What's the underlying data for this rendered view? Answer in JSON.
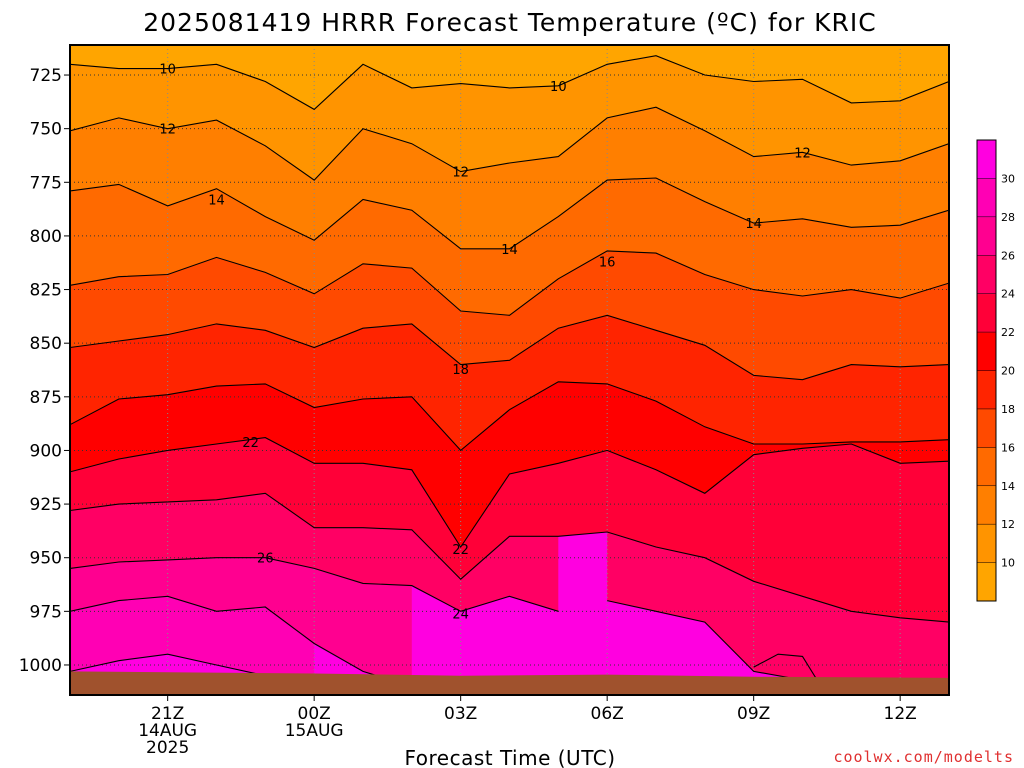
{
  "title": "2025081419 HRRR Forecast Temperature (ºC) for KRIC",
  "credit": "coolwx.com/modelts",
  "chart_data": {
    "type": "heatmap",
    "title": "2025081419 HRRR Forecast Temperature (ºC) for KRIC",
    "xlabel": "Forecast Time (UTC)",
    "ylabel": "",
    "x_unit": "forecast hour (hours after 2025081419)",
    "x_range": [
      19,
      37
    ],
    "y_unit": "pressure (hPa)",
    "y_range": [
      1014,
      711
    ],
    "y_scale": "linear, decreasing upward",
    "grid": true,
    "y_ticks": [
      725,
      750,
      775,
      800,
      825,
      850,
      875,
      900,
      925,
      950,
      975,
      1000
    ],
    "x_ticks": [
      {
        "x": 21,
        "lines": [
          "21Z",
          "14AUG",
          "2025"
        ]
      },
      {
        "x": 24,
        "lines": [
          "00Z",
          "15AUG"
        ]
      },
      {
        "x": 27,
        "lines": [
          "03Z"
        ]
      },
      {
        "x": 30,
        "lines": [
          "06Z"
        ]
      },
      {
        "x": 33,
        "lines": [
          "09Z"
        ]
      },
      {
        "x": 36,
        "lines": [
          "12Z"
        ]
      }
    ],
    "colorbar": {
      "levels": [
        10,
        12,
        14,
        16,
        18,
        20,
        22,
        24,
        26,
        28,
        30
      ],
      "colors": [
        "#ffa500",
        "#ff9400",
        "#ff7f00",
        "#ff6a00",
        "#ff4a00",
        "#ff2400",
        "#ff0000",
        "#ff0038",
        "#ff0064",
        "#ff0090",
        "#ff00b4",
        "#ff00e0"
      ]
    },
    "contours": [
      {
        "value": 10,
        "points": [
          [
            19,
            720
          ],
          [
            20,
            722
          ],
          [
            21,
            722
          ],
          [
            22,
            720
          ],
          [
            23,
            728
          ],
          [
            24,
            741
          ],
          [
            25,
            720
          ],
          [
            26,
            731
          ],
          [
            27,
            729
          ],
          [
            28,
            731
          ],
          [
            29,
            730
          ],
          [
            30,
            720
          ],
          [
            31,
            716
          ],
          [
            32,
            725
          ],
          [
            33,
            728
          ],
          [
            34,
            727
          ],
          [
            35,
            738
          ],
          [
            36,
            737
          ],
          [
            37,
            728
          ]
        ]
      },
      {
        "value": 12,
        "points": [
          [
            19,
            751
          ],
          [
            20,
            745
          ],
          [
            21,
            750
          ],
          [
            22,
            746
          ],
          [
            23,
            758
          ],
          [
            24,
            774
          ],
          [
            25,
            750
          ],
          [
            26,
            757
          ],
          [
            27,
            770
          ],
          [
            28,
            766
          ],
          [
            29,
            763
          ],
          [
            30,
            745
          ],
          [
            31,
            740
          ],
          [
            32,
            751
          ],
          [
            33,
            763
          ],
          [
            34,
            761
          ],
          [
            35,
            767
          ],
          [
            36,
            765
          ],
          [
            37,
            757
          ]
        ]
      },
      {
        "value": 14,
        "points": [
          [
            19,
            779
          ],
          [
            20,
            776
          ],
          [
            21,
            786
          ],
          [
            22,
            778
          ],
          [
            23,
            791
          ],
          [
            24,
            802
          ],
          [
            25,
            783
          ],
          [
            26,
            788
          ],
          [
            27,
            806
          ],
          [
            28,
            806
          ],
          [
            29,
            791
          ],
          [
            30,
            774
          ],
          [
            31,
            773
          ],
          [
            32,
            784
          ],
          [
            33,
            794
          ],
          [
            34,
            792
          ],
          [
            35,
            796
          ],
          [
            36,
            795
          ],
          [
            37,
            788
          ]
        ]
      },
      {
        "value": 16,
        "points": [
          [
            19,
            823
          ],
          [
            20,
            819
          ],
          [
            21,
            818
          ],
          [
            22,
            810
          ],
          [
            23,
            817
          ],
          [
            24,
            827
          ],
          [
            25,
            813
          ],
          [
            26,
            815
          ],
          [
            27,
            835
          ],
          [
            28,
            837
          ],
          [
            29,
            820
          ],
          [
            30,
            807
          ],
          [
            31,
            808
          ],
          [
            32,
            818
          ],
          [
            33,
            825
          ],
          [
            34,
            828
          ],
          [
            35,
            825
          ],
          [
            36,
            829
          ],
          [
            37,
            822
          ]
        ]
      },
      {
        "value": 18,
        "points": [
          [
            19,
            852
          ],
          [
            20,
            849
          ],
          [
            21,
            846
          ],
          [
            22,
            841
          ],
          [
            23,
            844
          ],
          [
            24,
            852
          ],
          [
            25,
            843
          ],
          [
            26,
            841
          ],
          [
            27,
            860
          ],
          [
            28,
            858
          ],
          [
            29,
            843
          ],
          [
            30,
            837
          ],
          [
            31,
            844
          ],
          [
            32,
            851
          ],
          [
            33,
            865
          ],
          [
            34,
            867
          ],
          [
            35,
            860
          ],
          [
            36,
            861
          ],
          [
            37,
            860
          ]
        ]
      },
      {
        "value": 20,
        "points": [
          [
            19,
            888
          ],
          [
            20,
            876
          ],
          [
            21,
            874
          ],
          [
            22,
            870
          ],
          [
            23,
            869
          ],
          [
            24,
            880
          ],
          [
            25,
            876
          ],
          [
            26,
            875
          ],
          [
            27,
            900
          ],
          [
            28,
            881
          ],
          [
            29,
            868
          ],
          [
            30,
            869
          ],
          [
            31,
            877
          ],
          [
            32,
            889
          ],
          [
            33,
            897
          ],
          [
            34,
            897
          ],
          [
            35,
            896
          ],
          [
            36,
            896
          ],
          [
            37,
            895
          ]
        ]
      },
      {
        "value": 22,
        "points": [
          [
            19,
            910
          ],
          [
            20,
            904
          ],
          [
            21,
            900
          ],
          [
            22,
            897
          ],
          [
            23,
            894
          ],
          [
            24,
            906
          ],
          [
            25,
            906
          ],
          [
            26,
            909
          ],
          [
            27,
            945
          ],
          [
            28,
            911
          ],
          [
            29,
            906
          ],
          [
            30,
            900
          ],
          [
            31,
            909
          ],
          [
            32,
            920
          ],
          [
            33,
            902
          ],
          [
            34,
            899
          ],
          [
            35,
            897
          ],
          [
            36,
            906
          ],
          [
            37,
            905
          ]
        ]
      },
      {
        "value": 24,
        "points": [
          [
            19,
            928
          ],
          [
            20,
            925
          ],
          [
            21,
            924
          ],
          [
            22,
            923
          ],
          [
            23,
            920
          ],
          [
            24,
            936
          ],
          [
            25,
            936
          ],
          [
            26,
            937
          ],
          [
            27,
            960
          ],
          [
            28,
            940
          ],
          [
            29,
            940
          ],
          [
            30,
            938
          ],
          [
            31,
            945
          ],
          [
            32,
            950
          ],
          [
            33,
            961
          ],
          [
            34,
            968
          ],
          [
            35,
            975
          ],
          [
            36,
            978
          ],
          [
            37,
            980
          ]
        ]
      },
      {
        "value": 26,
        "points": [
          [
            19,
            955
          ],
          [
            20,
            952
          ],
          [
            21,
            951
          ],
          [
            22,
            950
          ],
          [
            23,
            950
          ],
          [
            24,
            955
          ],
          [
            25,
            962
          ],
          [
            26,
            963
          ],
          [
            27,
            975
          ],
          [
            28,
            968
          ],
          [
            29,
            975
          ]
        ]
      },
      {
        "value": 26,
        "points": [
          [
            30,
            970
          ],
          [
            31,
            975
          ],
          [
            32,
            980
          ],
          [
            33,
            1003
          ],
          [
            34,
            1007
          ],
          [
            35,
            1013
          ],
          [
            36,
            1013
          ],
          [
            37,
            1013
          ]
        ]
      },
      {
        "value": 28,
        "points": [
          [
            19,
            975
          ],
          [
            20,
            970
          ],
          [
            21,
            968
          ],
          [
            22,
            975
          ],
          [
            23,
            973
          ],
          [
            24,
            990
          ],
          [
            25,
            1003
          ],
          [
            26,
            1010
          ]
        ]
      },
      {
        "value": 28,
        "points": [
          [
            33,
            1001
          ],
          [
            33.5,
            995
          ],
          [
            34,
            996
          ],
          [
            34.3,
            1007
          ]
        ]
      },
      {
        "value": 30,
        "points": [
          [
            19,
            1003
          ],
          [
            20,
            998
          ],
          [
            21,
            995
          ],
          [
            22,
            1000
          ],
          [
            23,
            1005
          ],
          [
            24,
            1013
          ]
        ]
      }
    ],
    "contour_labels": [
      {
        "value": 10,
        "x": 21,
        "y": 722
      },
      {
        "value": 10,
        "x": 29,
        "y": 730
      },
      {
        "value": 12,
        "x": 21,
        "y": 750
      },
      {
        "value": 12,
        "x": 27,
        "y": 770
      },
      {
        "value": 12,
        "x": 34,
        "y": 761
      },
      {
        "value": 14,
        "x": 22,
        "y": 783
      },
      {
        "value": 14,
        "x": 28,
        "y": 806
      },
      {
        "value": 14,
        "x": 33,
        "y": 794
      },
      {
        "value": 16,
        "x": 30,
        "y": 812
      },
      {
        "value": 18,
        "x": 27,
        "y": 862
      },
      {
        "value": 22,
        "x": 22.7,
        "y": 896
      },
      {
        "value": 22,
        "x": 27,
        "y": 946
      },
      {
        "value": 24,
        "x": 27,
        "y": 976
      },
      {
        "value": 26,
        "x": 23,
        "y": 950
      }
    ]
  }
}
